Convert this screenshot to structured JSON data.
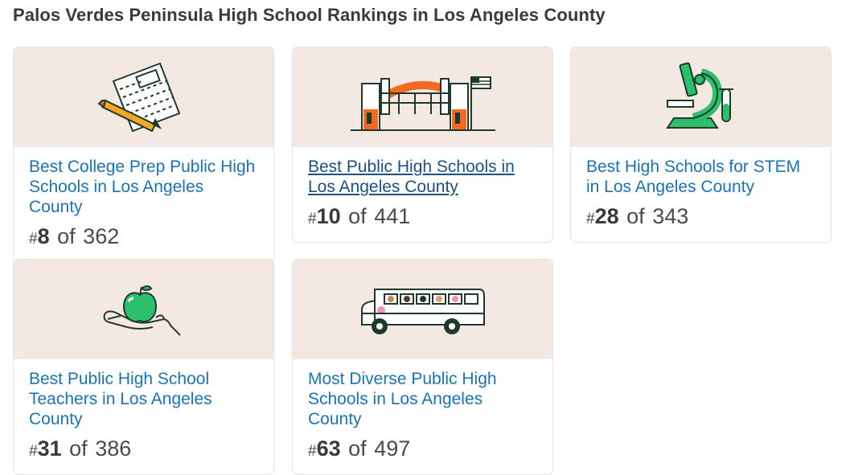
{
  "page": {
    "title": "Palos Verdes Peninsula High School Rankings in Los Angeles County"
  },
  "cards": [
    {
      "link": "Best College Prep Public High Schools in Los Angeles County",
      "hash": "#",
      "rank": "8",
      "of": "of",
      "total": "362",
      "icon": "test-paper-pencil-icon"
    },
    {
      "link": "Best Public High Schools in Los Angeles County",
      "hash": "#",
      "rank": "10",
      "of": "of",
      "total": "441",
      "icon": "school-gate-flag-icon"
    },
    {
      "link": "Best High Schools for STEM in Los Angeles County",
      "hash": "#",
      "rank": "28",
      "of": "of",
      "total": "343",
      "icon": "microscope-test-tube-icon"
    },
    {
      "link": "Best Public High School Teachers in Los Angeles County",
      "hash": "#",
      "rank": "31",
      "of": "of",
      "total": "386",
      "icon": "apple-hand-icon"
    },
    {
      "link": "Most Diverse Public High Schools in Los Angeles County",
      "hash": "#",
      "rank": "63",
      "of": "of",
      "total": "497",
      "icon": "school-bus-icon"
    }
  ],
  "colors": {
    "link": "#1a73b5",
    "illustration_bg": "#f3e9e2",
    "accent_green": "#2dbf6c",
    "accent_orange": "#f26a22",
    "accent_yellow": "#f5a623"
  }
}
